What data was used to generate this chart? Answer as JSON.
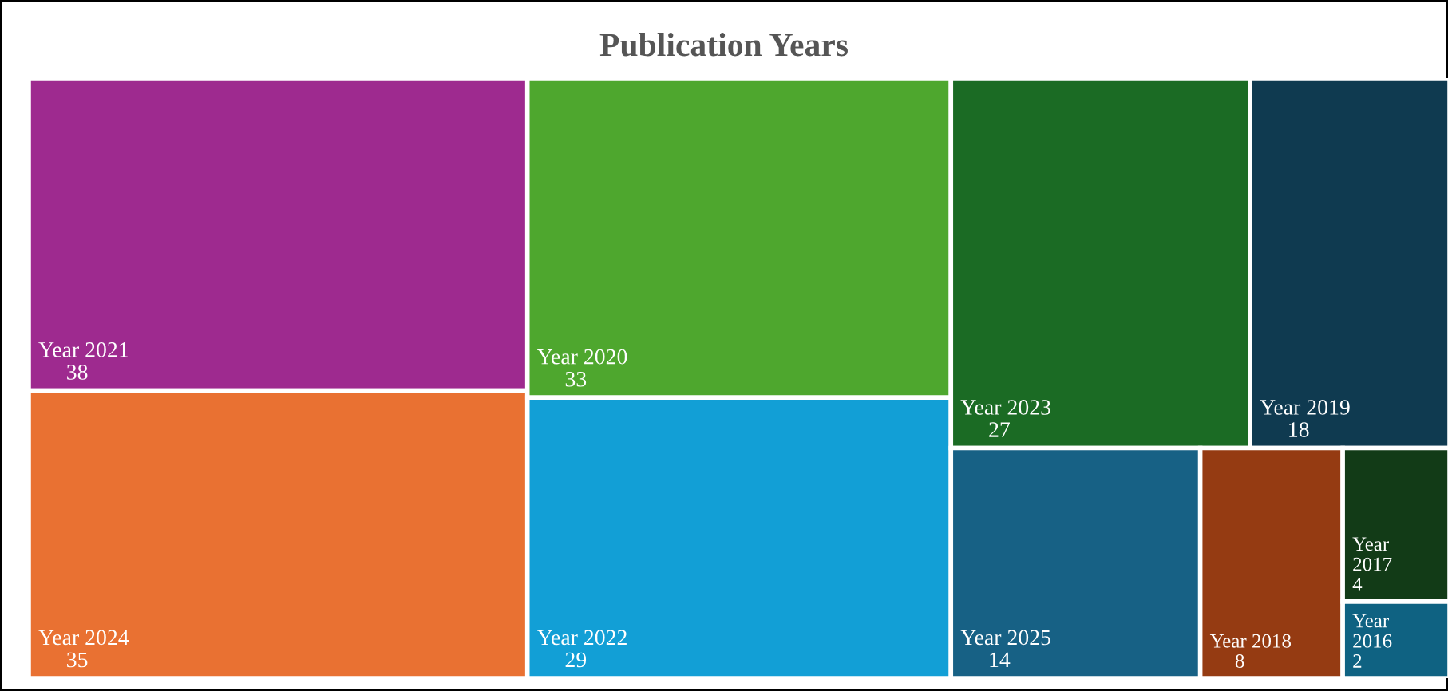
{
  "chart_data": {
    "type": "other",
    "title": "Publication Years",
    "categories": [
      "Year 2021",
      "Year 2024",
      "Year 2020",
      "Year 2022",
      "Year 2023",
      "Year 2019",
      "Year 2025",
      "Year 2018",
      "Year 2017",
      "Year 2016"
    ],
    "values": [
      38,
      35,
      33,
      29,
      27,
      18,
      14,
      8,
      4,
      2
    ],
    "colors": [
      "#9e2a8f",
      "#e97132",
      "#4ea72e",
      "#129fd6",
      "#1b6b24",
      "#0f3a50",
      "#176185",
      "#953b12",
      "#123b17",
      "#0f6282"
    ],
    "data_labels": true
  }
}
